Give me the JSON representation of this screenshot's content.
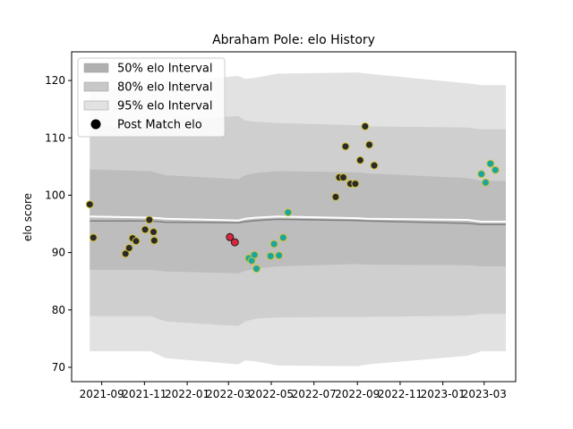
{
  "chart_data": {
    "type": "scatter",
    "title": "Abraham Pole: elo History",
    "xlabel": "",
    "ylabel": "elo score",
    "x_axis": {
      "type": "date",
      "range": [
        "2021-07-20",
        "2023-04-15"
      ],
      "ticks": [
        "2021-09-01",
        "2021-11-01",
        "2022-01-01",
        "2022-03-01",
        "2022-05-01",
        "2022-07-01",
        "2022-09-01",
        "2022-11-01",
        "2023-01-01",
        "2023-03-01"
      ],
      "tick_labels": [
        "2021-09",
        "2021-11",
        "2022-01",
        "2022-03",
        "2022-05",
        "2022-07",
        "2022-09",
        "2022-11",
        "2023-01",
        "2023-03"
      ]
    },
    "y_axis": {
      "range": [
        67.5,
        125
      ],
      "ticks": [
        70,
        80,
        90,
        100,
        110,
        120
      ]
    },
    "grid": false,
    "legend": {
      "position": "upper-left",
      "entries": [
        {
          "label": "50% elo Interval",
          "kind": "patch",
          "color": "#b0b0b0"
        },
        {
          "label": "80% elo Interval",
          "kind": "patch",
          "color": "#c8c8c8"
        },
        {
          "label": "95% elo Interval",
          "kind": "patch",
          "color": "#e2e2e2"
        },
        {
          "label": "Post Match elo",
          "kind": "marker",
          "color": "#000000"
        }
      ]
    },
    "colors": {
      "band95": "#e2e2e2",
      "band80": "#cfcfcf",
      "band50": "#bdbdbd",
      "mean_line": "#808080",
      "upper_line": "#ffffff",
      "point_gold": "#2b2b2b",
      "point_teal": "#1aa6a0",
      "point_red": "#d9263c",
      "point_edge": "#d4c22a",
      "point_edge_dark": "#222222"
    },
    "bands": {
      "dates": [
        "2021-08-15",
        "2021-11-10",
        "2021-12-01",
        "2022-03-15",
        "2022-03-25",
        "2022-04-10",
        "2022-05-10",
        "2022-09-01",
        "2022-09-15",
        "2023-02-05",
        "2023-02-25",
        "2023-04-01"
      ],
      "mean": [
        95.5,
        95.5,
        95.3,
        95.2,
        95.4,
        95.6,
        95.8,
        95.6,
        95.5,
        95.1,
        94.9,
        94.9
      ],
      "upper_line": [
        96.3,
        96.1,
        95.9,
        95.6,
        95.9,
        96.1,
        96.3,
        96.0,
        95.9,
        95.7,
        95.4,
        95.4
      ],
      "lo50": [
        87.0,
        87.0,
        86.7,
        86.4,
        86.8,
        87.2,
        87.6,
        88.0,
        87.9,
        87.8,
        87.6,
        87.6
      ],
      "hi50": [
        104.5,
        104.2,
        103.5,
        102.8,
        103.5,
        103.9,
        104.2,
        104.0,
        103.8,
        103.0,
        102.5,
        102.5
      ],
      "lo80": [
        78.9,
        78.9,
        78.0,
        77.2,
        78.0,
        78.5,
        78.7,
        78.8,
        78.8,
        79.0,
        79.3,
        79.3
      ],
      "hi80": [
        112.0,
        112.0,
        113.0,
        113.8,
        113.0,
        112.8,
        112.6,
        112.2,
        112.0,
        111.8,
        111.5,
        111.5
      ],
      "lo95": [
        72.8,
        72.8,
        71.6,
        70.5,
        71.2,
        71.0,
        70.3,
        70.2,
        70.5,
        72.0,
        72.8,
        72.8
      ],
      "hi95": [
        118.5,
        118.8,
        119.8,
        120.8,
        120.3,
        120.5,
        121.2,
        121.4,
        121.2,
        119.5,
        119.2,
        119.2
      ]
    },
    "series": [
      {
        "name": "Post Match elo",
        "points": [
          {
            "date": "2021-08-15",
            "elo": 98.4,
            "c": "gold"
          },
          {
            "date": "2021-08-20",
            "elo": 92.6,
            "c": "gold"
          },
          {
            "date": "2021-10-05",
            "elo": 89.8,
            "c": "gold"
          },
          {
            "date": "2021-10-10",
            "elo": 90.8,
            "c": "gold"
          },
          {
            "date": "2021-10-15",
            "elo": 92.5,
            "c": "gold"
          },
          {
            "date": "2021-10-20",
            "elo": 92.0,
            "c": "gold"
          },
          {
            "date": "2021-11-02",
            "elo": 94.0,
            "c": "gold"
          },
          {
            "date": "2021-11-08",
            "elo": 95.7,
            "c": "gold"
          },
          {
            "date": "2021-11-14",
            "elo": 93.6,
            "c": "gold"
          },
          {
            "date": "2021-11-15",
            "elo": 92.1,
            "c": "gold"
          },
          {
            "date": "2022-03-03",
            "elo": 92.7,
            "c": "red"
          },
          {
            "date": "2022-03-10",
            "elo": 91.8,
            "c": "red"
          },
          {
            "date": "2022-03-30",
            "elo": 89.0,
            "c": "teal"
          },
          {
            "date": "2022-04-03",
            "elo": 88.6,
            "c": "teal"
          },
          {
            "date": "2022-04-07",
            "elo": 89.6,
            "c": "teal"
          },
          {
            "date": "2022-04-10",
            "elo": 87.2,
            "c": "teal"
          },
          {
            "date": "2022-04-30",
            "elo": 89.4,
            "c": "teal"
          },
          {
            "date": "2022-05-05",
            "elo": 91.5,
            "c": "teal"
          },
          {
            "date": "2022-05-12",
            "elo": 89.5,
            "c": "teal"
          },
          {
            "date": "2022-05-18",
            "elo": 92.6,
            "c": "teal"
          },
          {
            "date": "2022-05-25",
            "elo": 97.0,
            "c": "teal"
          },
          {
            "date": "2022-08-01",
            "elo": 99.7,
            "c": "gold"
          },
          {
            "date": "2022-08-06",
            "elo": 103.1,
            "c": "gold"
          },
          {
            "date": "2022-08-12",
            "elo": 103.1,
            "c": "gold"
          },
          {
            "date": "2022-08-15",
            "elo": 108.5,
            "c": "gold"
          },
          {
            "date": "2022-08-22",
            "elo": 102.0,
            "c": "gold"
          },
          {
            "date": "2022-08-29",
            "elo": 102.0,
            "c": "gold"
          },
          {
            "date": "2022-09-05",
            "elo": 106.1,
            "c": "gold"
          },
          {
            "date": "2022-09-12",
            "elo": 112.0,
            "c": "gold"
          },
          {
            "date": "2022-09-18",
            "elo": 108.8,
            "c": "gold"
          },
          {
            "date": "2022-09-25",
            "elo": 105.2,
            "c": "gold"
          },
          {
            "date": "2023-02-25",
            "elo": 103.7,
            "c": "teal"
          },
          {
            "date": "2023-03-03",
            "elo": 102.2,
            "c": "teal"
          },
          {
            "date": "2023-03-10",
            "elo": 105.5,
            "c": "teal"
          },
          {
            "date": "2023-03-17",
            "elo": 104.4,
            "c": "teal"
          }
        ]
      }
    ]
  }
}
